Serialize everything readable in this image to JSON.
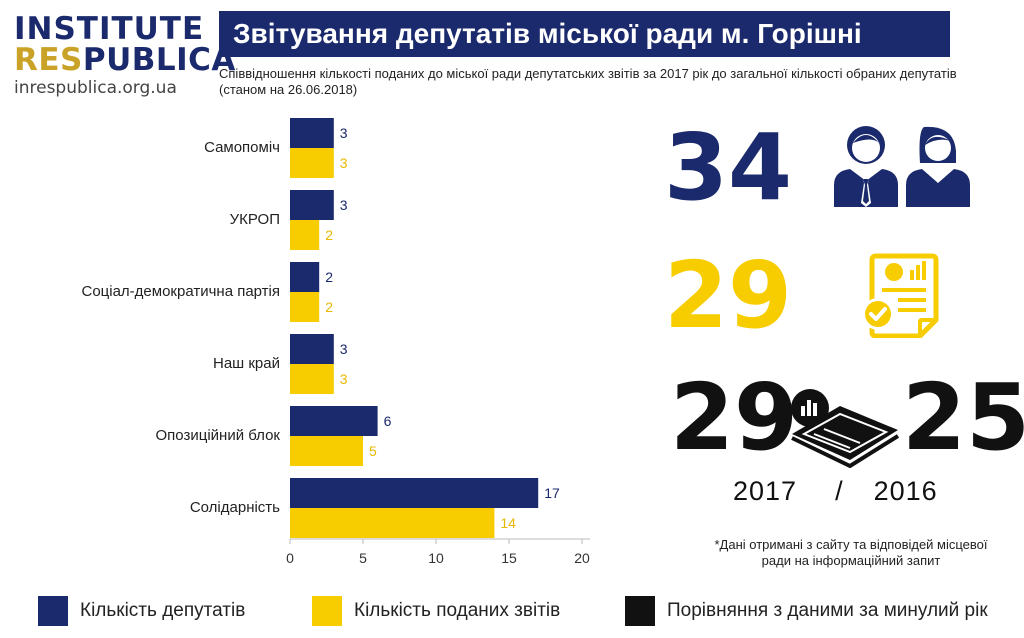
{
  "logo": {
    "line1": "INSTITUTE",
    "line2_accent": "RES",
    "line2_main": "PUBLICA",
    "url": "inrespublica.org.ua"
  },
  "header": {
    "title": "Звітування депутатів міської ради м. Горішні Плавні",
    "subtitle": "Співвідношення кількості поданих до міської ради депутатських звітів за 2017 рік до загальної кількості обраних депутатів (станом на 26.06.2018)"
  },
  "colors": {
    "deputies": "#1a2a6c",
    "reports": "#f7cd00",
    "comparison": "#111111"
  },
  "chart_data": {
    "type": "bar",
    "orientation": "horizontal",
    "categories": [
      "Самопоміч",
      "УКРОП",
      "Соціал-демократична партія",
      "Наш край",
      "Опозиційний блок",
      "Солідарність"
    ],
    "series": [
      {
        "name": "Кількість депутатів",
        "values": [
          3,
          3,
          2,
          3,
          6,
          17
        ]
      },
      {
        "name": "Кількість поданих звітів",
        "values": [
          3,
          2,
          2,
          3,
          5,
          14
        ]
      }
    ],
    "xticks": [
      "0",
      "5",
      "10",
      "15",
      "20"
    ],
    "xlim": [
      0,
      20
    ],
    "grid": false,
    "legend_placement": "bottom"
  },
  "stats": {
    "deputies_total": "34",
    "reports_total": "29",
    "reports_2017": "29",
    "reports_2016": "25",
    "year_current": "2017",
    "year_separator": "/",
    "year_previous": "2016"
  },
  "icons": {
    "deputies": "male-female-users-icon",
    "reports": "report-document-checkmark-icon",
    "comparison": "chart-documents-icon"
  },
  "note": "*Дані отримані з сайту та відповідей місцевої ради на інформаційний запит",
  "legend": {
    "deputies": "Кількість депутатів",
    "reports": "Кількість поданих звітів",
    "comparison": "Порівняння з даними за минулий рік"
  }
}
